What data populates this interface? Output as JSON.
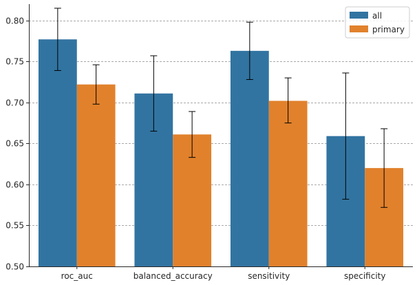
{
  "chart_data": {
    "type": "bar",
    "categories": [
      "roc_auc",
      "balanced_accuracy",
      "sensitivity",
      "specificity"
    ],
    "series": [
      {
        "name": "all",
        "color": "#3274a1",
        "values": [
          0.777,
          0.711,
          0.763,
          0.659
        ],
        "err_low": [
          0.739,
          0.665,
          0.728,
          0.582
        ],
        "err_high": [
          0.815,
          0.757,
          0.798,
          0.736
        ]
      },
      {
        "name": "primary",
        "color": "#e1812c",
        "values": [
          0.722,
          0.661,
          0.702,
          0.62
        ],
        "err_low": [
          0.698,
          0.633,
          0.675,
          0.572
        ],
        "err_high": [
          0.746,
          0.689,
          0.73,
          0.668
        ]
      }
    ],
    "title": "",
    "xlabel": "",
    "ylabel": "",
    "ylim": [
      0.5,
      0.82
    ],
    "yticks": [
      "0.50",
      "0.55",
      "0.60",
      "0.65",
      "0.70",
      "0.75",
      "0.80"
    ],
    "grid": "horizontal dashed",
    "legend_position": "top-right",
    "grid_color": "#8c8c8c",
    "axis_color": "#262626"
  }
}
